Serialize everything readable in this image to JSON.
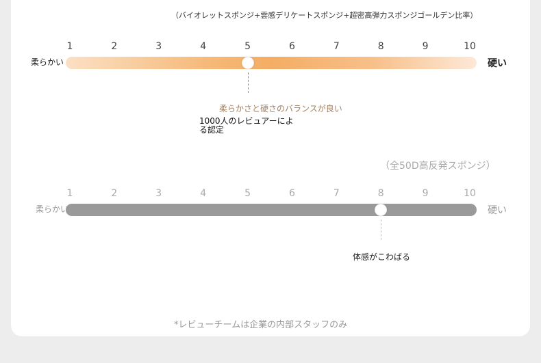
{
  "scale1": {
    "title": "（バイオレットスポンジ+雲感デリケートスポンジ+超密高弾力スポンジゴールデン比率）",
    "ticks": [
      "1",
      "2",
      "3",
      "4",
      "5",
      "6",
      "7",
      "8",
      "9",
      "10"
    ],
    "soft_label": "柔らかい",
    "hard_label": "硬い",
    "value": 5,
    "balance_text": "柔らかさと硬さのバランスが良い",
    "reviewer_text": "1000人のレビュアーによる認定"
  },
  "scale2": {
    "title": "（全50D高反発スポンジ）",
    "ticks": [
      "1",
      "2",
      "3",
      "4",
      "5",
      "6",
      "7",
      "8",
      "9",
      "10"
    ],
    "soft_label": "柔らかい",
    "hard_label": "硬い",
    "value": 8,
    "feel_text": "体感がこわばる"
  },
  "footnote": "*レビューチームは企業の内部スタッフのみ",
  "colors": {
    "accent_orange": "#f4ad64",
    "gray_bar": "#9a9a9a",
    "balance_text": "#a08060"
  }
}
